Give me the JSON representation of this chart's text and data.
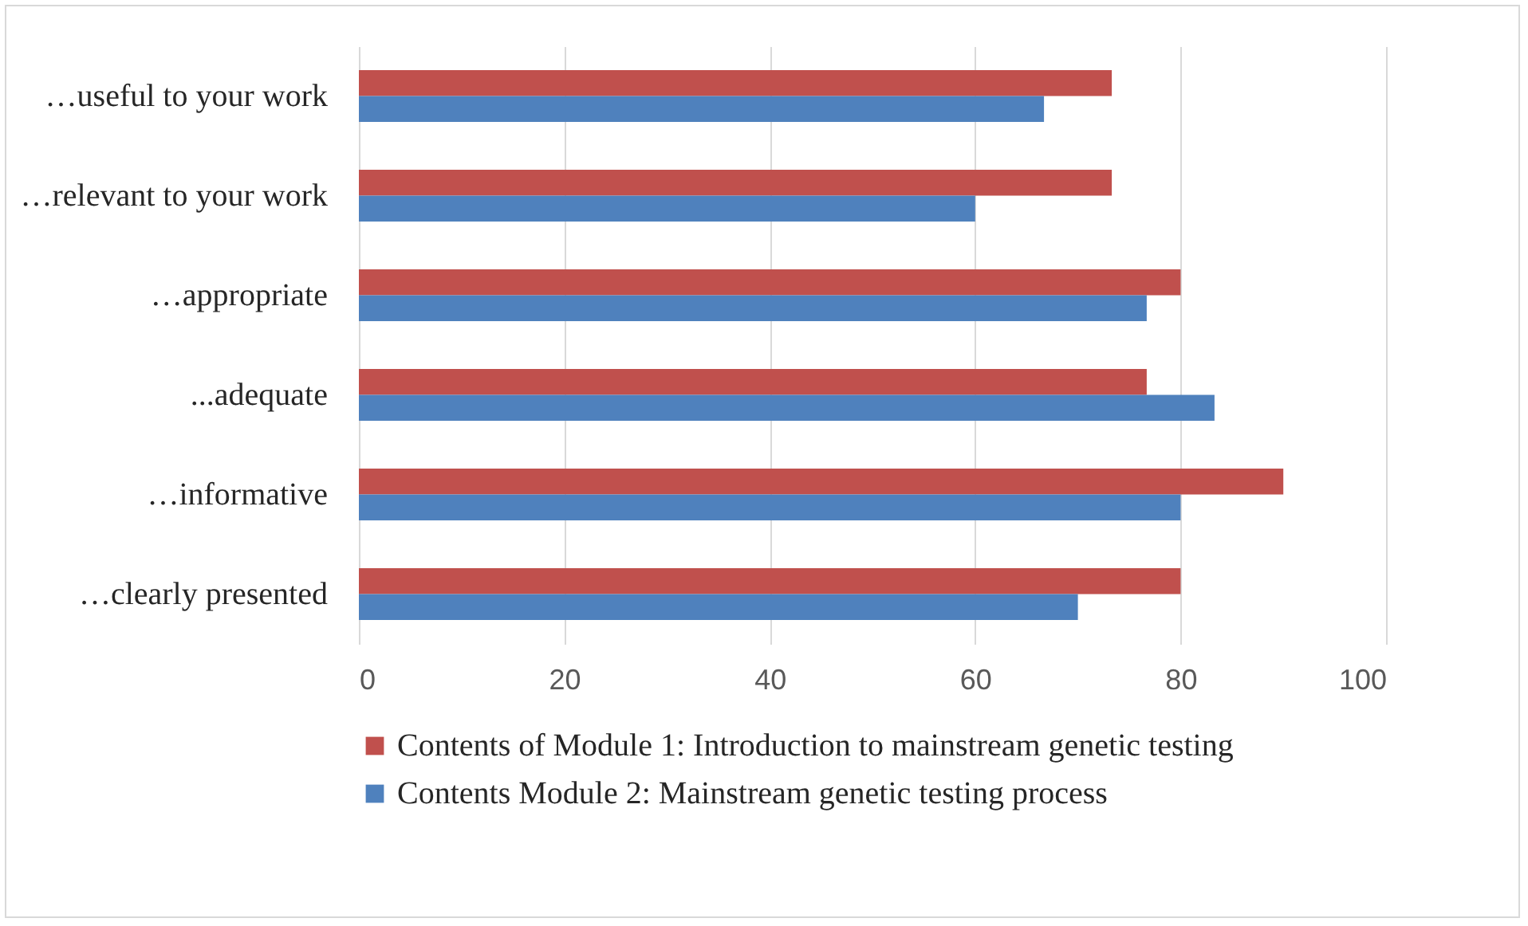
{
  "chart_data": {
    "type": "bar",
    "orientation": "horizontal",
    "categories": [
      "…useful to your work",
      "…relevant to your work",
      "…appropriate",
      "...adequate",
      "…informative",
      "…clearly presented"
    ],
    "series": [
      {
        "name": "Contents of Module 1: Introduction to mainstream genetic testing",
        "color": "#c0504d",
        "values": [
          73.3,
          73.3,
          80,
          76.7,
          90,
          80
        ]
      },
      {
        "name": "Contents Module 2: Mainstream genetic testing process",
        "color": "#4f81bd",
        "values": [
          66.7,
          60,
          76.7,
          83.3,
          80,
          70
        ]
      }
    ],
    "xlim": [
      0,
      100
    ],
    "xticks": [
      0,
      20,
      40,
      60,
      80,
      100
    ],
    "grid": "x",
    "legend": "bottom"
  }
}
